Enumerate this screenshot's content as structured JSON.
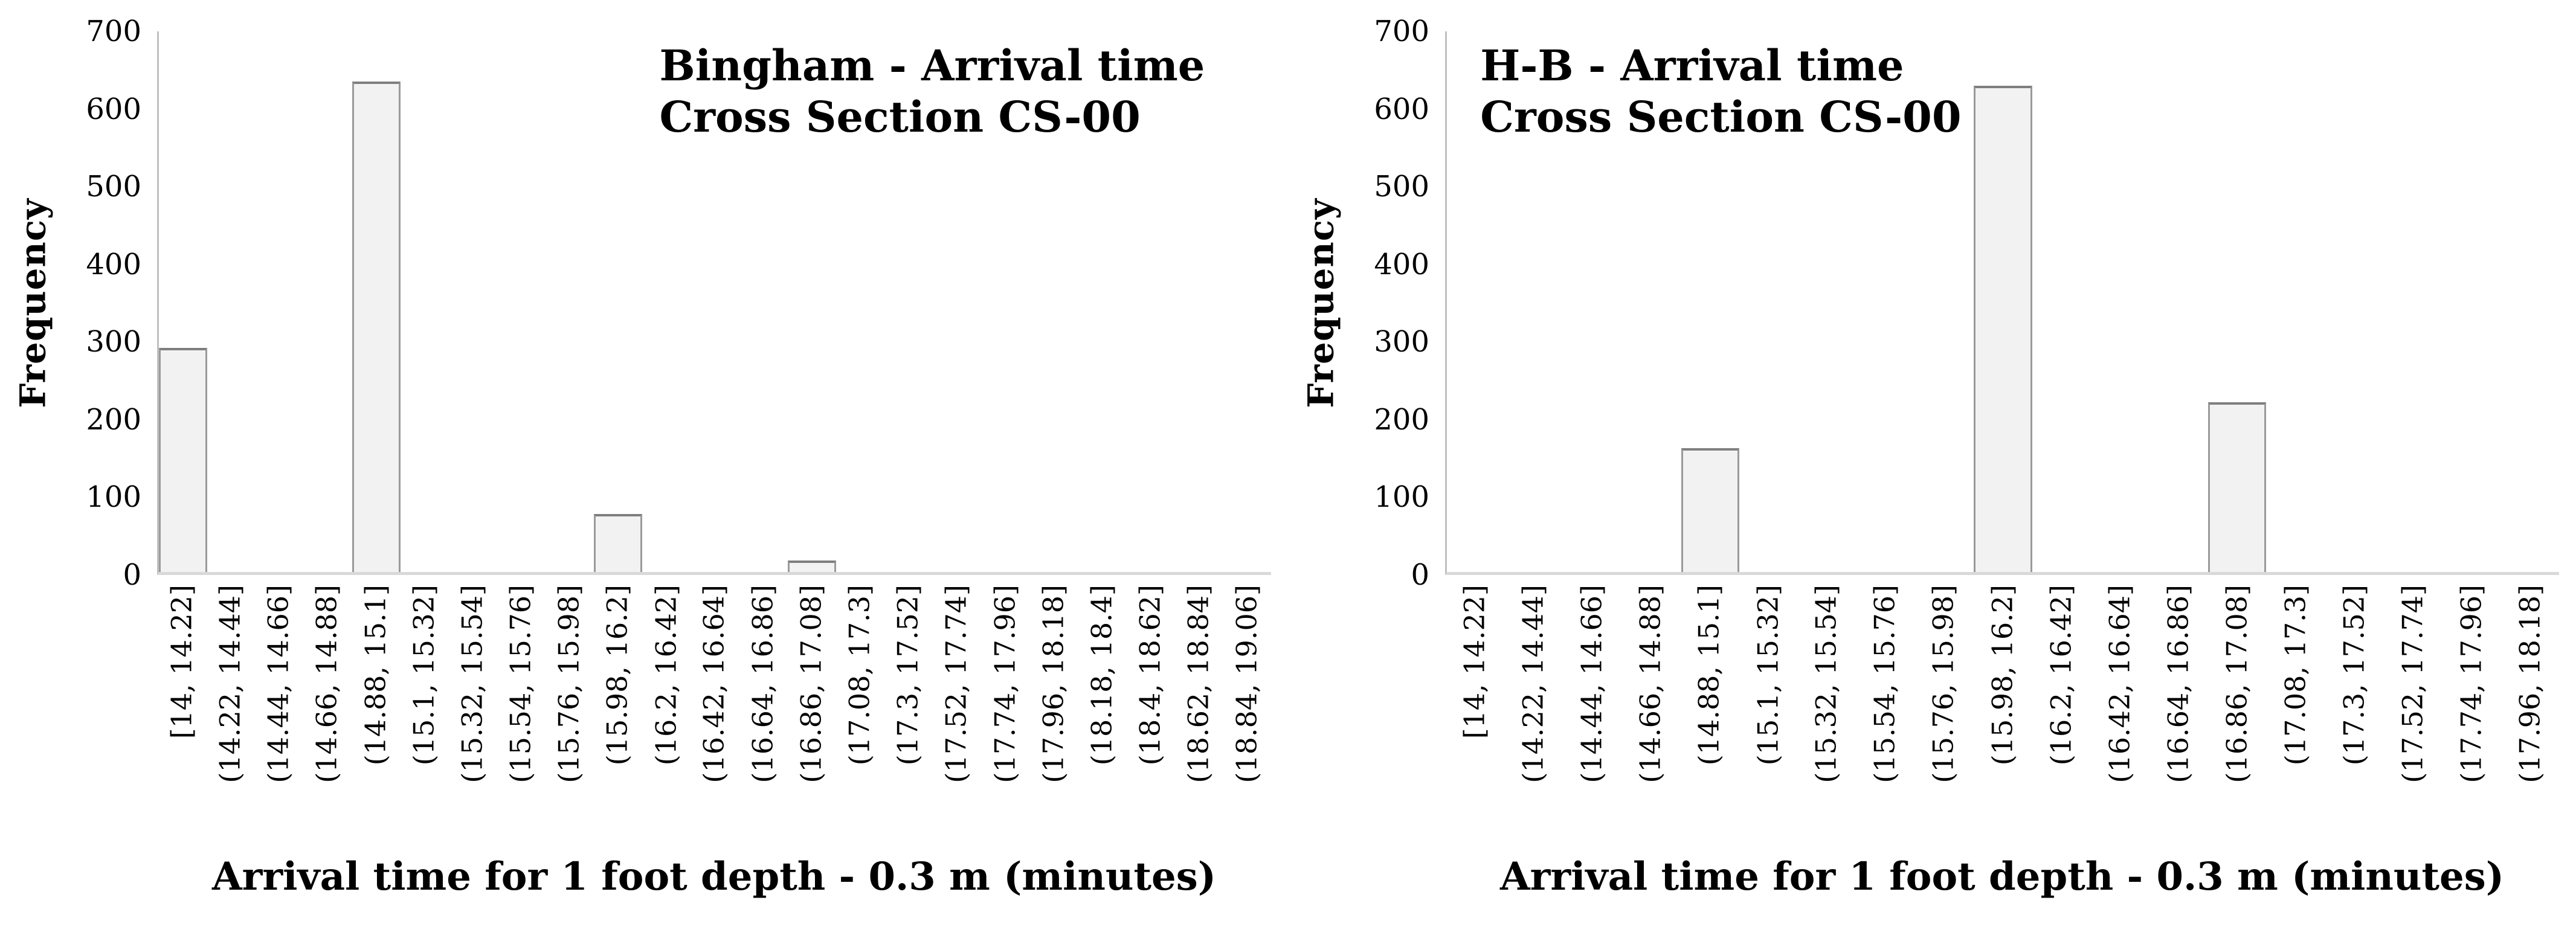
{
  "colors": {
    "bar_fill": "#f2f2f2",
    "bar_border": "#9a9a9a",
    "bar_top": "#7f7f7f",
    "axis_line": "#c0c0c0",
    "baseline": "#d9d9d9",
    "text": "#000000"
  },
  "chart_data": [
    {
      "type": "bar",
      "title_lines": [
        "Bingham - Arrival time",
        "Cross Section CS-00"
      ],
      "xlabel": "Arrival time for 1 foot depth - 0.3 m (minutes)",
      "ylabel": "Frequency",
      "ylim": [
        0,
        700
      ],
      "yticks": [
        700,
        600,
        500,
        400,
        300,
        200,
        100,
        0
      ],
      "grid": false,
      "legend": "none",
      "categories": [
        "[14, 14.22]",
        "(14.22, 14.44]",
        "(14.44, 14.66]",
        "(14.66, 14.88]",
        "(14.88, 15.1]",
        "(15.1, 15.32]",
        "(15.32, 15.54]",
        "(15.54, 15.76]",
        "(15.76, 15.98]",
        "(15.98, 16.2]",
        "(16.2, 16.42]",
        "(16.42, 16.64]",
        "(16.64, 16.86]",
        "(16.86, 17.08]",
        "(17.08, 17.3]",
        "(17.3, 17.52]",
        "(17.52, 17.74]",
        "(17.74, 17.96]",
        "(17.96, 18.18]",
        "(18.18, 18.4]",
        "(18.4, 18.62]",
        "(18.62, 18.84]",
        "(18.84, 19.06]"
      ],
      "values": [
        290,
        0,
        0,
        0,
        635,
        0,
        0,
        0,
        0,
        75,
        0,
        0,
        0,
        15,
        0,
        0,
        0,
        0,
        0,
        0,
        0,
        0,
        0
      ]
    },
    {
      "type": "bar",
      "title_lines": [
        "H-B - Arrival time",
        "Cross Section CS-00"
      ],
      "xlabel": "Arrival time for 1 foot depth - 0.3 m (minutes)",
      "ylabel": "Frequency",
      "ylim": [
        0,
        700
      ],
      "yticks": [
        700,
        600,
        500,
        400,
        300,
        200,
        100,
        0
      ],
      "grid": false,
      "legend": "none",
      "categories": [
        "[14, 14.22]",
        "(14.22, 14.44]",
        "(14.44, 14.66]",
        "(14.66, 14.88]",
        "(14.88, 15.1]",
        "(15.1, 15.32]",
        "(15.32, 15.54]",
        "(15.54, 15.76]",
        "(15.76, 15.98]",
        "(15.98, 16.2]",
        "(16.2, 16.42]",
        "(16.42, 16.64]",
        "(16.64, 16.86]",
        "(16.86, 17.08]",
        "(17.08, 17.3]",
        "(17.3, 17.52]",
        "(17.52, 17.74]",
        "(17.74, 17.96]",
        "(17.96, 18.18]"
      ],
      "values": [
        0,
        0,
        0,
        0,
        160,
        0,
        0,
        0,
        0,
        630,
        0,
        0,
        0,
        220,
        0,
        0,
        0,
        0,
        0
      ]
    }
  ]
}
